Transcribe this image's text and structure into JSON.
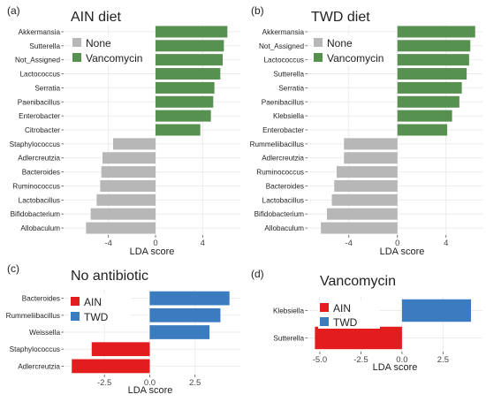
{
  "colors": {
    "none": "#b7b7b7",
    "vancomycin": "#579150",
    "ain": "#e31d1d",
    "twd": "#3a7cbf",
    "grid": "#ebebeb"
  },
  "chart_data": [
    {
      "panel": "(a)",
      "type": "bar",
      "orientation": "horizontal",
      "title": "AIN diet",
      "xlabel": "LDA score",
      "xticks": [
        "-4",
        "0",
        "4"
      ],
      "xlim": [
        -7.8,
        7.2
      ],
      "legend": {
        "position": "top-left",
        "entries": [
          {
            "label": "None",
            "color": "#b7b7b7"
          },
          {
            "label": "Vancomycin",
            "color": "#579150"
          }
        ]
      },
      "categories": [
        "Akkermansia",
        "Sutterella",
        "Not_Assigned",
        "Lactococcus",
        "Serratia",
        "Paenibacillus",
        "Enterobacter",
        "Citrobacter",
        "Staphylococcus",
        "Adlercreutzia",
        "Bacteroides",
        "Ruminococcus",
        "Lactobacillus",
        "Bifidobacterium",
        "Allobaculum"
      ],
      "groups": [
        "Vancomycin",
        "Vancomycin",
        "Vancomycin",
        "Vancomycin",
        "Vancomycin",
        "Vancomycin",
        "Vancomycin",
        "Vancomycin",
        "None",
        "None",
        "None",
        "None",
        "None",
        "None",
        "None"
      ],
      "values": [
        6.1,
        5.8,
        5.7,
        5.5,
        5.0,
        4.9,
        4.7,
        3.8,
        -3.6,
        -4.5,
        -4.6,
        -4.7,
        -5.0,
        -5.5,
        -5.9
      ]
    },
    {
      "panel": "(b)",
      "type": "bar",
      "orientation": "horizontal",
      "title": "TWD diet",
      "xlabel": "LDA score",
      "xticks": [
        "-4",
        "0",
        "4"
      ],
      "xlim": [
        -7.4,
        7.0
      ],
      "legend": {
        "position": "top-left",
        "entries": [
          {
            "label": "None",
            "color": "#b7b7b7"
          },
          {
            "label": "Vancomycin",
            "color": "#579150"
          }
        ]
      },
      "categories": [
        "Akkermansia",
        "Not_Assigned",
        "Lactococcus",
        "Sutterella",
        "Serratia",
        "Paenibacillus",
        "Klebsiella",
        "Enterobacter",
        "Rummeliibacillus",
        "Adlercreutzia",
        "Ruminococcus",
        "Bacteroides",
        "Lactobacillus",
        "Bifidobacterium",
        "Allobaculum"
      ],
      "groups": [
        "Vancomycin",
        "Vancomycin",
        "Vancomycin",
        "Vancomycin",
        "Vancomycin",
        "Vancomycin",
        "Vancomycin",
        "Vancomycin",
        "None",
        "None",
        "None",
        "None",
        "None",
        "None",
        "None"
      ],
      "values": [
        6.4,
        6.0,
        5.9,
        5.7,
        5.3,
        5.1,
        4.5,
        4.1,
        -4.4,
        -4.4,
        -5.0,
        -5.2,
        -5.4,
        -5.8,
        -6.3
      ]
    },
    {
      "panel": "(c)",
      "type": "bar",
      "orientation": "horizontal",
      "title": "No antibiotic",
      "xlabel": "LDA score",
      "xticks": [
        "-2.5",
        "0.0",
        "2.5"
      ],
      "xlim": [
        -4.75,
        5.0
      ],
      "legend": {
        "position": "top-left",
        "entries": [
          {
            "label": "AIN",
            "color": "#e31d1d"
          },
          {
            "label": "TWD",
            "color": "#3a7cbf"
          }
        ]
      },
      "categories": [
        "Bacteroides",
        "Rummeliibacillus",
        "Weissella",
        "Staphylococcus",
        "Adlercreutzia"
      ],
      "groups": [
        "TWD",
        "TWD",
        "TWD",
        "AIN",
        "AIN"
      ],
      "values": [
        4.4,
        3.9,
        3.3,
        -3.2,
        -4.3
      ]
    },
    {
      "panel": "(d)",
      "type": "bar",
      "orientation": "horizontal",
      "title": "Vancomycin",
      "xlabel": "LDA score",
      "xticks": [
        "-5.0",
        "-2.5",
        "0.0",
        "2.5"
      ],
      "xlim": [
        -5.75,
        4.9
      ],
      "legend": {
        "position": "top-left",
        "entries": [
          {
            "label": "AIN",
            "color": "#e31d1d"
          },
          {
            "label": "TWD",
            "color": "#3a7cbf"
          }
        ]
      },
      "categories": [
        "Klebsiella",
        "Sutterella"
      ],
      "groups": [
        "TWD",
        "AIN"
      ],
      "values": [
        4.2,
        -5.3
      ]
    }
  ]
}
